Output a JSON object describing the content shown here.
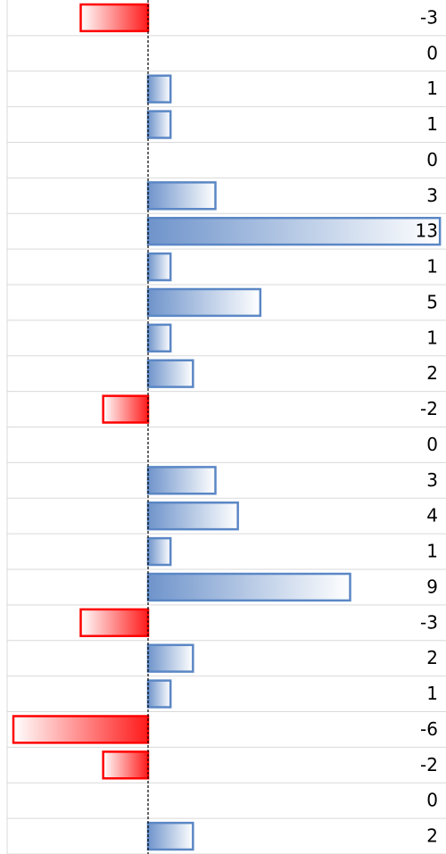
{
  "sheet": {
    "values": [
      -3,
      0,
      1,
      1,
      0,
      3,
      13,
      1,
      5,
      1,
      2,
      -2,
      0,
      3,
      4,
      1,
      9,
      -3,
      2,
      1,
      -6,
      -2,
      0,
      2
    ],
    "positive_color": "#5b87c5",
    "negative_color": "#ff0000"
  }
}
